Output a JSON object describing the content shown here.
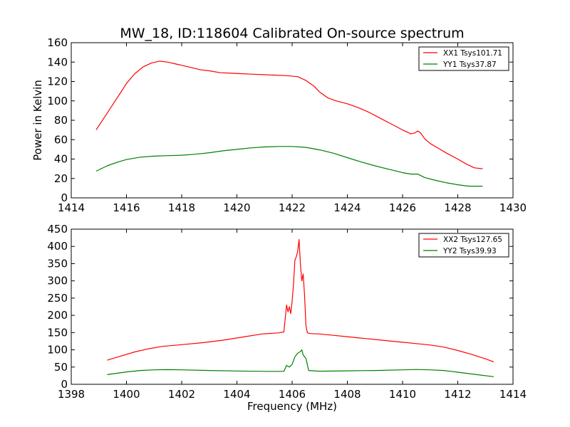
{
  "figure": {
    "title": "MW_18, ID:118604 Calibrated On-source spectrum",
    "colors": {
      "xx": "#ff0000",
      "yy": "#007f00"
    }
  },
  "chart_data": [
    {
      "type": "line",
      "title": "MW_18, ID:118604 Calibrated On-source spectrum",
      "xlabel": "",
      "ylabel": "Power in Kelvin",
      "xlim": [
        1414,
        1430
      ],
      "ylim": [
        0,
        160
      ],
      "xticks": [
        "1414",
        "1416",
        "1418",
        "1420",
        "1422",
        "1424",
        "1426",
        "1428",
        "1430"
      ],
      "yticks": [
        "0",
        "20",
        "40",
        "60",
        "80",
        "100",
        "120",
        "140",
        "160"
      ],
      "grid": false,
      "legend_position": "top-right",
      "series": [
        {
          "name": "XX1 Tsys101.71",
          "color": "#ff0000",
          "x": [
            1414.9,
            1415.2,
            1415.5,
            1415.8,
            1416.0,
            1416.3,
            1416.6,
            1416.9,
            1417.2,
            1417.5,
            1417.8,
            1418.1,
            1418.4,
            1418.7,
            1419.0,
            1419.4,
            1419.8,
            1420.2,
            1420.6,
            1421.0,
            1421.4,
            1421.8,
            1422.2,
            1422.5,
            1422.8,
            1423.0,
            1423.3,
            1423.6,
            1424.0,
            1424.4,
            1424.8,
            1425.2,
            1425.6,
            1426.0,
            1426.3,
            1426.45,
            1426.55,
            1426.65,
            1426.8,
            1427.0,
            1427.3,
            1427.6,
            1428.0,
            1428.3,
            1428.6,
            1428.9
          ],
          "y": [
            70,
            83,
            96,
            109,
            118,
            128,
            135,
            139,
            141,
            140,
            138,
            136,
            134,
            132,
            131,
            129,
            128.5,
            128,
            127.5,
            127,
            126.5,
            126,
            125,
            121,
            115,
            109,
            103,
            100,
            97,
            93,
            88,
            82,
            76,
            70,
            66,
            67,
            69,
            67,
            61,
            56,
            51,
            46,
            40,
            35,
            31,
            30
          ]
        },
        {
          "name": "YY1 Tsys37.87",
          "color": "#007f00",
          "x": [
            1414.9,
            1415.3,
            1415.7,
            1416.0,
            1416.5,
            1417.0,
            1417.5,
            1418.0,
            1418.5,
            1419.0,
            1419.5,
            1420.0,
            1420.5,
            1421.0,
            1421.5,
            1422.0,
            1422.5,
            1423.0,
            1423.5,
            1424.0,
            1424.5,
            1425.0,
            1425.5,
            1426.0,
            1426.3,
            1426.55,
            1426.8,
            1427.2,
            1427.6,
            1428.0,
            1428.4,
            1428.9
          ],
          "y": [
            27.5,
            33,
            37,
            39.5,
            42,
            43,
            43.5,
            44,
            45,
            46.5,
            48.5,
            50,
            51.5,
            52.5,
            53,
            53,
            52,
            49.5,
            46,
            41.5,
            37,
            33,
            29.5,
            26,
            24.5,
            24.5,
            21,
            18,
            15.5,
            13.5,
            12,
            12
          ]
        }
      ]
    },
    {
      "type": "line",
      "title": "",
      "xlabel": "Frequency (MHz)",
      "ylabel": "",
      "xlim": [
        1398,
        1414
      ],
      "ylim": [
        0,
        450
      ],
      "xticks": [
        "1398",
        "1400",
        "1402",
        "1404",
        "1406",
        "1408",
        "1410",
        "1412",
        "1414"
      ],
      "yticks": [
        "0",
        "50",
        "100",
        "150",
        "200",
        "250",
        "300",
        "350",
        "400",
        "450"
      ],
      "grid": false,
      "legend_position": "top-right",
      "series": [
        {
          "name": "XX2 Tsys127.65",
          "color": "#ff0000",
          "x": [
            1399.3,
            1399.8,
            1400.3,
            1400.8,
            1401.3,
            1402.0,
            1402.8,
            1403.5,
            1404.2,
            1404.9,
            1405.5,
            1405.7,
            1405.8,
            1405.85,
            1405.9,
            1405.95,
            1406.0,
            1406.05,
            1406.1,
            1406.15,
            1406.2,
            1406.25,
            1406.3,
            1406.35,
            1406.4,
            1406.45,
            1406.5,
            1406.55,
            1406.6,
            1406.7,
            1407.0,
            1407.5,
            1408.0,
            1408.5,
            1409.0,
            1409.5,
            1410.0,
            1410.5,
            1411.0,
            1411.5,
            1412.0,
            1412.5,
            1413.0,
            1413.3
          ],
          "y": [
            70,
            82,
            94,
            103,
            110,
            115,
            121,
            128,
            137,
            146,
            149,
            152,
            230,
            210,
            225,
            205,
            240,
            290,
            360,
            370,
            385,
            420,
            350,
            300,
            320,
            260,
            170,
            150,
            148,
            147,
            146,
            142,
            138,
            134,
            130,
            126,
            122,
            118,
            114,
            108,
            98,
            87,
            74,
            65
          ]
        },
        {
          "name": "YY2 Tsys39.93",
          "color": "#007f00",
          "x": [
            1399.3,
            1400.0,
            1400.5,
            1401.0,
            1401.5,
            1402.0,
            1403.0,
            1404.0,
            1405.0,
            1405.7,
            1405.8,
            1405.9,
            1406.0,
            1406.1,
            1406.2,
            1406.3,
            1406.35,
            1406.4,
            1406.5,
            1406.6,
            1407.0,
            1408.0,
            1409.0,
            1410.0,
            1410.5,
            1411.0,
            1411.5,
            1412.0,
            1412.5,
            1413.3
          ],
          "y": [
            28,
            36,
            40,
            42,
            42.5,
            42,
            40,
            38.5,
            37.5,
            37.5,
            55,
            50,
            58,
            80,
            90,
            95,
            100,
            85,
            75,
            40,
            38,
            39,
            40,
            42,
            43,
            42,
            40,
            35,
            30,
            22
          ]
        }
      ]
    }
  ]
}
